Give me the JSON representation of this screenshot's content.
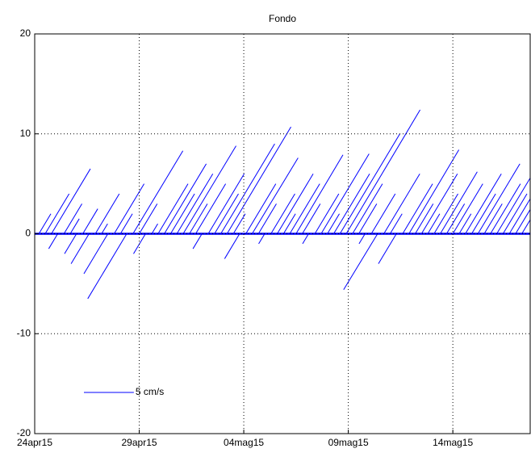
{
  "chart_data": {
    "type": "stick",
    "title": "Fondo",
    "color": "#0000ff",
    "x": [
      0.2,
      0.5,
      0.8,
      1.1,
      1.4,
      1.7,
      2.0,
      2.3,
      2.6,
      2.9,
      3.2,
      3.5,
      3.8,
      4.1,
      4.4,
      4.7,
      5.0,
      5.3,
      5.6,
      5.9,
      6.2,
      6.5,
      6.8,
      7.1,
      7.4,
      7.7,
      8.0,
      8.3,
      8.6,
      8.9,
      9.2,
      9.5,
      9.8,
      10.1,
      10.4,
      10.7,
      11.0,
      11.3,
      11.6,
      11.9,
      12.2,
      12.5,
      12.8,
      13.1,
      13.4,
      13.7,
      14.0,
      14.3,
      14.6,
      14.9,
      15.2,
      15.5,
      15.8,
      16.1,
      16.4,
      16.7,
      17.0,
      17.3,
      17.6,
      17.9,
      18.2,
      18.5,
      18.8,
      19.1,
      19.4,
      19.7,
      20.0,
      20.3,
      20.6,
      20.9,
      21.2,
      21.5,
      21.8,
      22.1,
      22.4,
      22.7,
      23.0,
      23.3
    ],
    "u": [
      1.2,
      2.4,
      3.9,
      -0.9,
      1.8,
      0.9,
      -1.2,
      1.5,
      -1.8,
      2.4,
      0.6,
      -2.4,
      3,
      1.2,
      -3.9,
      5,
      1.8,
      -1.2,
      0.6,
      3,
      4.2,
      2.4,
      3.6,
      5.3,
      1.8,
      3,
      -0.9,
      3.6,
      2.4,
      5.4,
      6.4,
      1.2,
      -1.5,
      3,
      4.6,
      1.8,
      -0.6,
      2.4,
      3.6,
      1.2,
      3,
      4.7,
      1.8,
      -0.6,
      2.4,
      4.8,
      1.2,
      3.6,
      6,
      7.4,
      3,
      1.8,
      -0.6,
      2.4,
      -3.4,
      3.6,
      1.2,
      -1.8,
      3,
      5,
      1.8,
      3.6,
      1.2,
      2.4,
      3.7,
      1.8,
      3,
      1.2,
      3.6,
      2.4,
      4.2,
      1.8,
      3,
      4.8,
      2.4,
      3.6,
      5.8,
      3
    ],
    "v": [
      2,
      4,
      6.5,
      -1.5,
      3,
      1.5,
      -2,
      2.5,
      -3,
      4,
      1,
      -4,
      5,
      2,
      -6.5,
      8.3,
      3,
      -2,
      1,
      5,
      7,
      4,
      6,
      8.8,
      3,
      5,
      -1.5,
      6,
      4,
      9,
      10.7,
      2,
      -2.5,
      5,
      7.6,
      3,
      -1,
      4,
      6,
      2,
      5,
      7.9,
      3,
      -1,
      4,
      8,
      2,
      6,
      10,
      12.4,
      5,
      3,
      -1,
      4,
      -5.6,
      6,
      2,
      -3,
      5,
      8.4,
      3,
      6,
      2,
      4,
      6.2,
      3,
      5,
      2,
      6,
      4,
      7,
      3,
      5,
      8,
      4,
      6,
      9.6,
      5
    ],
    "xlim": [
      0,
      23.7
    ],
    "xticks": [
      {
        "value": 0,
        "label": "24apr15"
      },
      {
        "value": 5,
        "label": "29apr15"
      },
      {
        "value": 10,
        "label": "04mag15"
      },
      {
        "value": 15,
        "label": "09mag15"
      },
      {
        "value": 20,
        "label": "14mag15"
      }
    ],
    "ylim": [
      -20,
      20
    ],
    "yticks": [
      -20,
      -10,
      0,
      10,
      20
    ],
    "grid": true,
    "legend": {
      "label": "5 cm/s",
      "value": 5
    }
  }
}
